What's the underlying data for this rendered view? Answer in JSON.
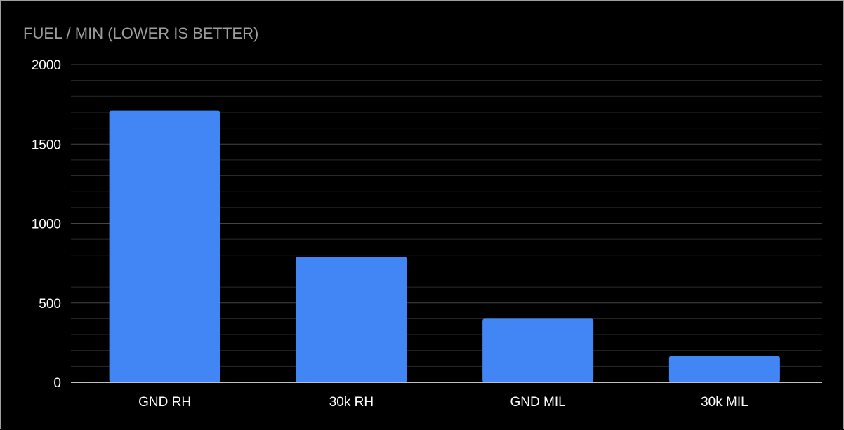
{
  "chart_data": {
    "type": "bar",
    "title": "FUEL / MIN (LOWER IS BETTER)",
    "categories": [
      "GND RH",
      "30k RH",
      "GND MIL",
      "30k MIL"
    ],
    "values": [
      1710,
      790,
      400,
      165
    ],
    "ylim": [
      0,
      2000
    ],
    "yticks": [
      "0",
      "500",
      "1000",
      "1500",
      "2000"
    ],
    "minor_step": 100,
    "grid": true,
    "legend": "none",
    "colors": {
      "bar": "#4285f4",
      "background": "#000000",
      "text": "#ffffff",
      "title": "#9e9e9e",
      "grid": "#333333"
    }
  }
}
